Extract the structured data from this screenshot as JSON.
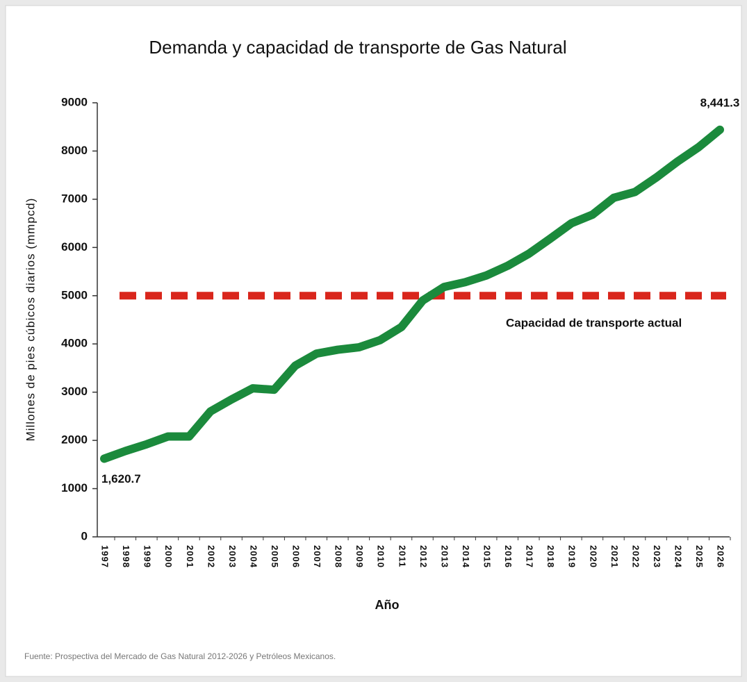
{
  "chart_data": {
    "type": "line",
    "title": "Demanda y capacidad de transporte de Gas Natural",
    "y_axis_label": "Millones de pies cúbicos diarios (mmpcd)",
    "x_axis_label": "Año",
    "source": "Fuente: Prospectiva del Mercado de Gas Natural 2012-2026 y Petróleos Mexicanos.",
    "categories": [
      "1997",
      "1998",
      "1999",
      "2000",
      "2001",
      "2002",
      "2003",
      "2004",
      "2005",
      "2006",
      "2007",
      "2008",
      "2009",
      "2010",
      "2011",
      "2012",
      "2013",
      "2014",
      "2015",
      "2016",
      "2017",
      "2018",
      "2019",
      "2020",
      "2021",
      "2022",
      "2023",
      "2024",
      "2025",
      "2026"
    ],
    "series": [
      {
        "name": "Demanda",
        "color": "#1b8a3c",
        "values": [
          1620.7,
          1780,
          1920,
          2080,
          2080,
          2600,
          2850,
          3080,
          3050,
          3550,
          3800,
          3880,
          3930,
          4080,
          4350,
          4900,
          5180,
          5280,
          5420,
          5620,
          5870,
          6180,
          6500,
          6680,
          7030,
          7150,
          7450,
          7780,
          8080,
          8441.3
        ],
        "value_labels": [
          "1,620.7",
          null,
          null,
          null,
          null,
          null,
          null,
          null,
          null,
          null,
          null,
          null,
          null,
          null,
          null,
          null,
          null,
          null,
          null,
          null,
          null,
          null,
          null,
          null,
          null,
          null,
          null,
          null,
          null,
          "8,441.3"
        ]
      }
    ],
    "reference_line": {
      "value": 5000,
      "label": "Capacidad de transporte actual",
      "color": "#d9261c"
    },
    "ylim": [
      0,
      9000
    ],
    "yticks": [
      0,
      1000,
      2000,
      3000,
      4000,
      5000,
      6000,
      7000,
      8000,
      9000
    ],
    "grid": false
  }
}
